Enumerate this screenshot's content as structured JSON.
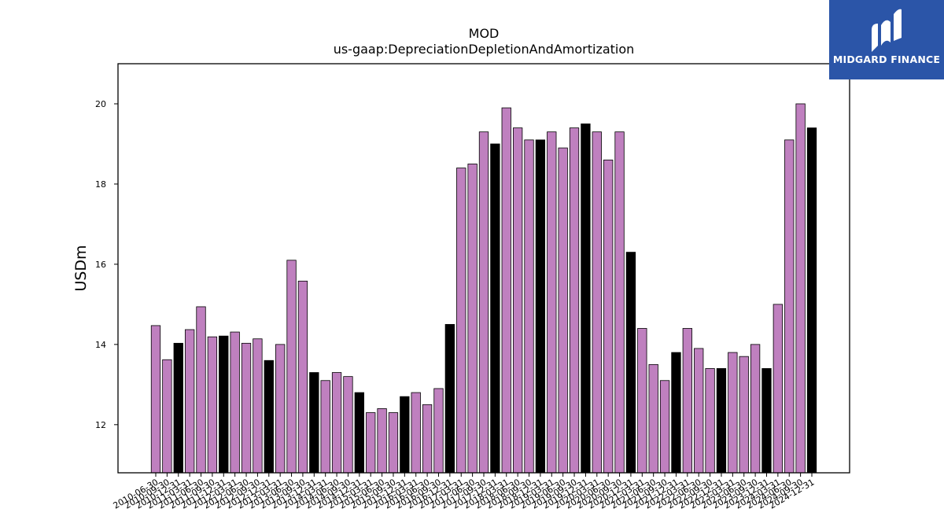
{
  "chart_data": {
    "type": "bar",
    "title": "MOD",
    "subtitle": "us-gaap:DepreciationDepletionAndAmortization",
    "ylabel": "USDm",
    "xlabel": "",
    "ylim": [
      10.8,
      21.0
    ],
    "yticks": [
      12,
      14,
      16,
      18,
      20
    ],
    "grid": false,
    "colors": {
      "quarter": "#bf80bf",
      "annual": "#000000",
      "edge": "#000000"
    },
    "categories": [
      "2010-06-30",
      "2010-09-30",
      "2010-12-31",
      "2011-03-31",
      "2011-06-30",
      "2011-09-30",
      "2011-12-31",
      "2012-03-31",
      "2012-06-30",
      "2012-09-30",
      "2012-12-31",
      "2013-03-31",
      "2013-06-30",
      "2013-09-30",
      "2013-12-31",
      "2014-03-31",
      "2014-06-30",
      "2014-09-30",
      "2014-12-31",
      "2015-03-31",
      "2015-06-30",
      "2015-09-30",
      "2015-12-31",
      "2016-03-31",
      "2016-06-30",
      "2016-09-30",
      "2016-12-31",
      "2017-03-31",
      "2017-06-30",
      "2017-09-30",
      "2017-12-31",
      "2018-03-31",
      "2018-06-30",
      "2018-09-30",
      "2018-12-31",
      "2019-03-31",
      "2019-06-30",
      "2019-09-30",
      "2019-12-31",
      "2020-03-31",
      "2020-06-30",
      "2020-09-30",
      "2020-12-31",
      "2021-03-31",
      "2021-06-30",
      "2021-09-30",
      "2021-12-31",
      "2022-03-31",
      "2022-06-30",
      "2022-09-30",
      "2022-12-31",
      "2023-03-31",
      "2023-06-30",
      "2023-09-30",
      "2023-12-31",
      "2024-03-31",
      "2024-06-30",
      "2024-09-30",
      "2024-12-31"
    ],
    "values": [
      14.47,
      13.62,
      14.03,
      14.37,
      14.94,
      14.19,
      14.21,
      14.31,
      14.03,
      14.14,
      13.6,
      14.0,
      16.1,
      15.58,
      13.3,
      13.1,
      13.3,
      13.2,
      12.8,
      12.3,
      12.4,
      12.3,
      12.7,
      12.8,
      12.5,
      12.9,
      14.5,
      18.4,
      18.5,
      19.3,
      19.0,
      19.9,
      19.4,
      19.1,
      19.1,
      19.3,
      18.9,
      19.4,
      19.5,
      19.3,
      18.6,
      19.3,
      16.3,
      14.4,
      13.5,
      13.1,
      13.8,
      14.4,
      13.9,
      13.4,
      13.4,
      13.8,
      13.7,
      14.0,
      13.4,
      15.0,
      19.1,
      20.0,
      19.4
    ],
    "annual_flags": [
      0,
      0,
      1,
      0,
      0,
      0,
      1,
      0,
      0,
      0,
      1,
      0,
      0,
      0,
      1,
      0,
      0,
      0,
      1,
      0,
      0,
      0,
      1,
      0,
      0,
      0,
      1,
      0,
      0,
      0,
      1,
      0,
      0,
      0,
      1,
      0,
      0,
      0,
      1,
      0,
      0,
      0,
      1,
      0,
      0,
      0,
      1,
      0,
      0,
      0,
      1,
      0,
      0,
      0,
      1,
      0,
      0,
      0,
      1
    ]
  },
  "logo": {
    "text": "MIDGARD FINANCE",
    "icon": "midgard-logo-icon"
  }
}
